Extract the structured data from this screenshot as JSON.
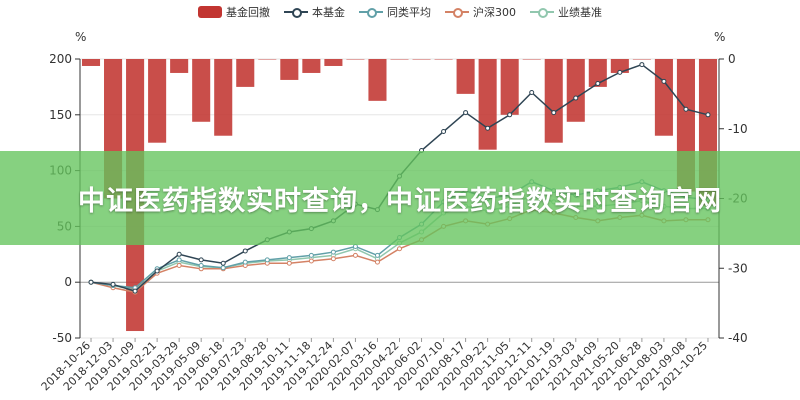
{
  "legend": {
    "items": [
      {
        "label": "基金回撤",
        "color": "#c23531",
        "kind": "bar"
      },
      {
        "label": "本基金",
        "color": "#2f4554",
        "kind": "line"
      },
      {
        "label": "同类平均",
        "color": "#61a0a8",
        "kind": "line"
      },
      {
        "label": "沪深300",
        "color": "#d48265",
        "kind": "line"
      },
      {
        "label": "业绩基准",
        "color": "#91c7ae",
        "kind": "line"
      }
    ]
  },
  "units": {
    "left": "%",
    "right": "%"
  },
  "banner": {
    "text": "中证医药指数实时查询，中证医药指数实时查询官网"
  },
  "chart_data": {
    "type": "line",
    "categories": [
      "2018-10-26",
      "2018-12-03",
      "2019-01-09",
      "2019-02-21",
      "2019-03-29",
      "2019-05-09",
      "2019-06-18",
      "2019-07-23",
      "2019-08-28",
      "2019-10-11",
      "2019-11-18",
      "2019-12-24",
      "2020-02-07",
      "2020-03-16",
      "2020-04-22",
      "2020-06-02",
      "2020-07-10",
      "2020-08-17",
      "2020-09-22",
      "2020-11-05",
      "2020-12-11",
      "2021-01-19",
      "2021-03-03",
      "2021-04-09",
      "2021-05-20",
      "2021-06-28",
      "2021-08-03",
      "2021-09-08",
      "2021-10-25"
    ],
    "left_axis": {
      "label": "%",
      "min": -50,
      "max": 200,
      "ticks": [
        -50,
        0,
        50,
        100,
        150,
        200
      ]
    },
    "right_axis": {
      "label": "%",
      "min": -40,
      "max": 0,
      "ticks": [
        -40,
        -30,
        -20,
        -10,
        0
      ]
    },
    "series": [
      {
        "name": "本基金",
        "axis": "left",
        "color": "#2f4554",
        "values": [
          0,
          -2,
          -8,
          10,
          25,
          20,
          17,
          28,
          38,
          45,
          48,
          55,
          70,
          65,
          95,
          118,
          135,
          152,
          138,
          150,
          170,
          152,
          165,
          178,
          188,
          195,
          180,
          155,
          150
        ]
      },
      {
        "name": "同类平均",
        "axis": "left",
        "color": "#61a0a8",
        "values": [
          0,
          -3,
          -5,
          12,
          20,
          15,
          13,
          18,
          20,
          22,
          24,
          27,
          32,
          24,
          40,
          52,
          72,
          82,
          75,
          78,
          90,
          82,
          78,
          82,
          85,
          90,
          82,
          76,
          74
        ]
      },
      {
        "name": "沪深300",
        "axis": "left",
        "color": "#d48265",
        "values": [
          0,
          -5,
          -9,
          8,
          15,
          12,
          12,
          15,
          17,
          17,
          19,
          21,
          24,
          18,
          30,
          38,
          50,
          55,
          52,
          57,
          65,
          62,
          58,
          55,
          58,
          60,
          55,
          56,
          56
        ]
      },
      {
        "name": "业绩基准",
        "axis": "left",
        "color": "#91c7ae",
        "values": [
          0,
          -3,
          -7,
          10,
          18,
          14,
          13,
          17,
          19,
          20,
          22,
          24,
          30,
          21,
          35,
          45,
          62,
          68,
          64,
          68,
          78,
          72,
          68,
          68,
          70,
          73,
          68,
          66,
          66
        ]
      },
      {
        "name": "基金回撤",
        "axis": "right",
        "type": "bar",
        "color": "#c23531",
        "values": [
          -1,
          -20,
          -39,
          -12,
          -2,
          -9,
          -11,
          -4,
          0,
          -3,
          -2,
          -1,
          0,
          -6,
          0,
          0,
          0,
          -5,
          -13,
          -8,
          0,
          -12,
          -9,
          -4,
          -2,
          0,
          -11,
          -19,
          -21
        ]
      }
    ]
  }
}
